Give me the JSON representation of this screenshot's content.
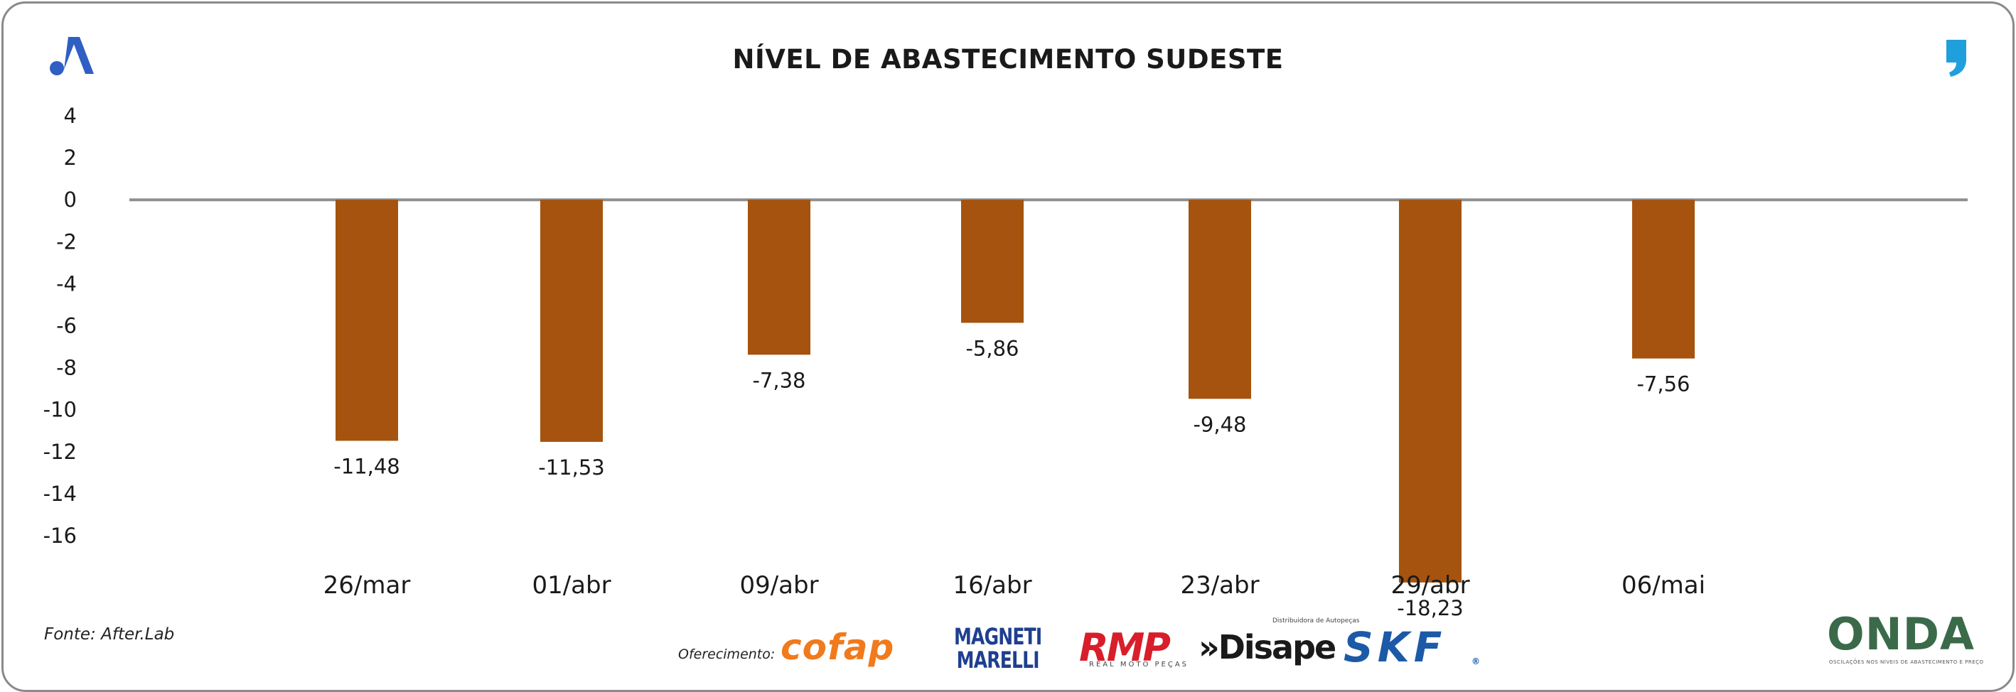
{
  "chart_data": {
    "type": "bar",
    "title": "NÍVEL DE ABASTECIMENTO SUDESTE",
    "categories": [
      "26/mar",
      "01/abr",
      "09/abr",
      "16/abr",
      "23/abr",
      "29/abr",
      "06/mai"
    ],
    "values": [
      -11.48,
      -11.53,
      -7.38,
      -5.86,
      -9.48,
      -18.23,
      -7.56
    ],
    "value_labels": [
      "-11,48",
      "-11,53",
      "-7,38",
      "-5,86",
      "-9,48",
      "-18,23",
      "-7,56"
    ],
    "y_ticks": [
      4,
      2,
      0,
      -2,
      -4,
      -6,
      -8,
      -10,
      -12,
      -14,
      -16
    ],
    "ylim": [
      -16,
      4
    ],
    "xlabel": "",
    "ylabel": "",
    "grid": false,
    "legend": "none",
    "bar_color": "#a5530e",
    "zero_line_color": "#8f8f8f"
  },
  "footer": {
    "source": "Fonte: After.Lab",
    "sponsor_label": "Oferecimento:"
  },
  "sponsors": {
    "cofap": "cofap",
    "magneti_line1": "MAGNETI",
    "magneti_line2": "MARELLI",
    "rmp": "RMP",
    "rmp_sub": "REAL MOTO PEÇAS",
    "disape": "»Disape",
    "disape_sub": "Distribuidora de Autopeças",
    "skf": "SKF",
    "skf_reg": "®",
    "onda": "ONDA",
    "onda_sub": "OSCILAÇÕES NOS NÍVEIS DE ABASTECIMENTO E PREÇO"
  },
  "colors": {
    "brand_blue": "#2f5fc4",
    "accent_cyan": "#1fa0dc"
  },
  "icons": {
    "top_left": "a-brand-icon",
    "top_right": "quote-mark-icon"
  }
}
